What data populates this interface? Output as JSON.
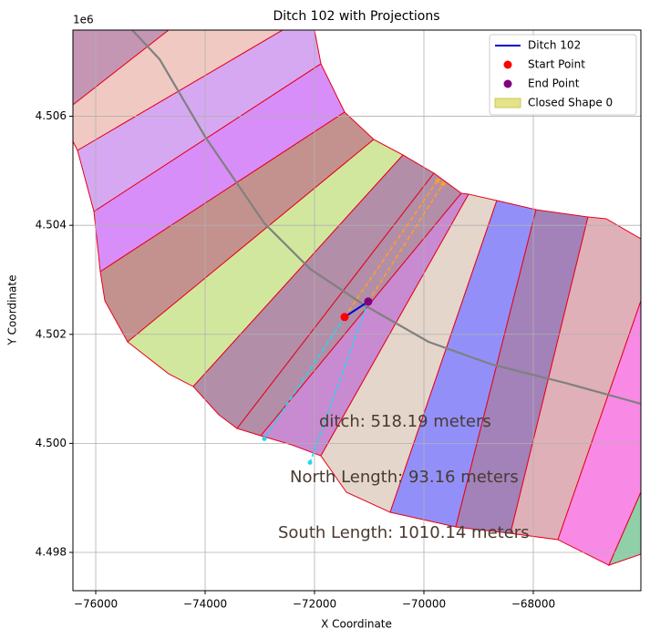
{
  "chart_data": {
    "type": "shapes",
    "title": "Ditch 102 with Projections",
    "x_label": "X Coordinate",
    "y_label": "Y Coordinate",
    "y_offset_label": "1e6",
    "xlim": [
      -76417,
      -66033
    ],
    "ylim": [
      4497298,
      4507581
    ],
    "xticks": [
      {
        "value": -76000,
        "label": "−76000"
      },
      {
        "value": -74000,
        "label": "−74000"
      },
      {
        "value": -72000,
        "label": "−72000"
      },
      {
        "value": -70000,
        "label": "−70000"
      },
      {
        "value": -68000,
        "label": "−68000"
      }
    ],
    "yticks": [
      {
        "value": 4498000,
        "label": "4.498"
      },
      {
        "value": 4500000,
        "label": "4.500"
      },
      {
        "value": 4502000,
        "label": "4.502"
      },
      {
        "value": 4504000,
        "label": "4.504"
      },
      {
        "value": 4506000,
        "label": "4.506"
      }
    ],
    "grid": true,
    "legend": "upper right",
    "shape_edge_color": "#e8001c",
    "shapes": [
      {
        "color": "#c496b4",
        "points": [
          [
            -76417,
            4507581
          ],
          [
            -74667,
            4507581
          ],
          [
            -76417,
            4506210
          ]
        ]
      },
      {
        "color": "#f0cac2",
        "points": [
          [
            -76417,
            4506210
          ],
          [
            -74667,
            4507581
          ],
          [
            -72583,
            4507581
          ],
          [
            -76333,
            4505374
          ],
          [
            -76417,
            4505541
          ]
        ]
      },
      {
        "color": "#d6a8f2",
        "points": [
          [
            -76333,
            4505374
          ],
          [
            -72583,
            4507581
          ],
          [
            -72000,
            4507581
          ],
          [
            -71883,
            4506962
          ],
          [
            -76033,
            4504253
          ]
        ]
      },
      {
        "color": "#d88ef8",
        "points": [
          [
            -76033,
            4504253
          ],
          [
            -71883,
            4506962
          ],
          [
            -71450,
            4506076
          ],
          [
            -75917,
            4503150
          ]
        ]
      },
      {
        "color": "#c4928e",
        "points": [
          [
            -75917,
            4503150
          ],
          [
            -71450,
            4506076
          ],
          [
            -70917,
            4505574
          ],
          [
            -75417,
            4501862
          ],
          [
            -75833,
            4502615
          ]
        ]
      },
      {
        "color": "#d2e79e",
        "points": [
          [
            -75417,
            4501862
          ],
          [
            -70917,
            4505574
          ],
          [
            -70383,
            4505290
          ],
          [
            -74217,
            4501043
          ],
          [
            -74667,
            4501277
          ]
        ]
      },
      {
        "color": "#b28ea8",
        "points": [
          [
            -74217,
            4501043
          ],
          [
            -70383,
            4505290
          ],
          [
            -69817,
            4504956
          ],
          [
            -73417,
            4500274
          ],
          [
            -73750,
            4500525
          ]
        ]
      },
      {
        "color": "#b28ea8",
        "points": [
          [
            -73417,
            4500274
          ],
          [
            -69817,
            4504956
          ],
          [
            -69317,
            4504588
          ],
          [
            -72983,
            4500140
          ]
        ]
      },
      {
        "color": "#c88ad0",
        "points": [
          [
            -72983,
            4500140
          ],
          [
            -69317,
            4504588
          ],
          [
            -69183,
            4504571
          ],
          [
            -71883,
            4499772
          ],
          [
            -72417,
            4499973
          ]
        ]
      },
      {
        "color": "#e4d6ca",
        "points": [
          [
            -71883,
            4499772
          ],
          [
            -69183,
            4504571
          ],
          [
            -68667,
            4504454
          ],
          [
            -70617,
            4498736
          ],
          [
            -71417,
            4499104
          ]
        ]
      },
      {
        "color": "#9290f8",
        "points": [
          [
            -70617,
            4498736
          ],
          [
            -68667,
            4504454
          ],
          [
            -67950,
            4504287
          ],
          [
            -69417,
            4498468
          ]
        ]
      },
      {
        "color": "#a282b8",
        "points": [
          [
            -69417,
            4498468
          ],
          [
            -67950,
            4504287
          ],
          [
            -67000,
            4504153
          ],
          [
            -68417,
            4498351
          ]
        ]
      },
      {
        "color": "#e0b0b8",
        "points": [
          [
            -68417,
            4498351
          ],
          [
            -67000,
            4504153
          ],
          [
            -66667,
            4504120
          ],
          [
            -66033,
            4503752
          ],
          [
            -66033,
            4502615
          ],
          [
            -67550,
            4498234
          ]
        ]
      },
      {
        "color": "#f88ae6",
        "points": [
          [
            -67550,
            4498234
          ],
          [
            -66033,
            4502615
          ],
          [
            -66033,
            4499104
          ],
          [
            -66617,
            4497766
          ]
        ]
      },
      {
        "color": "#90d0a8",
        "points": [
          [
            -66617,
            4497766
          ],
          [
            -66033,
            4499104
          ],
          [
            -66033,
            4497967
          ]
        ]
      }
    ],
    "centerline": {
      "color": "#808080",
      "x": [
        -75333,
        -74833,
        -74000,
        -72917,
        -72083,
        -71083,
        -69917,
        -68750,
        -67417,
        -66033
      ],
      "y": [
        4507582,
        4507047,
        4505625,
        4504037,
        4503201,
        4502532,
        4501863,
        4501445,
        4501110,
        4500726
      ]
    },
    "projections": [
      {
        "color": "#ffa020",
        "x": [
          -71450,
          -69750
        ],
        "y": [
          4502318,
          4504820
        ]
      },
      {
        "color": "#ffa020",
        "x": [
          -71017,
          -69650
        ],
        "y": [
          4502602,
          4504760
        ]
      },
      {
        "color": "#20d8f0",
        "x": [
          -71450,
          -72917
        ],
        "y": [
          4502318,
          4500084
        ]
      },
      {
        "color": "#20d8f0",
        "x": [
          -71017,
          -72083
        ],
        "y": [
          4502602,
          4499649
        ]
      }
    ],
    "series": [
      {
        "name": "Ditch 102",
        "color": "#0000cc",
        "x": [
          -71450,
          -71017
        ],
        "y": [
          4502318,
          4502602
        ]
      }
    ],
    "points": [
      {
        "name": "Start Point",
        "color": "#ff0000",
        "x": -71450,
        "y": 4502318
      },
      {
        "name": "End Point",
        "color": "#800080",
        "x": -71017,
        "y": 4502602
      }
    ],
    "closed_shape": {
      "name": "Closed Shape 0",
      "color": "#e3e387"
    },
    "annotations": [
      {
        "text": "ditch: 518.19 meters",
        "x": -71917,
        "y": 4500391
      },
      {
        "text": "North Length: 93.16 meters",
        "x": -72450,
        "y": 4499371
      },
      {
        "text": "South Length: 1010.14 meters",
        "x": -72667,
        "y": 4498351
      }
    ]
  }
}
